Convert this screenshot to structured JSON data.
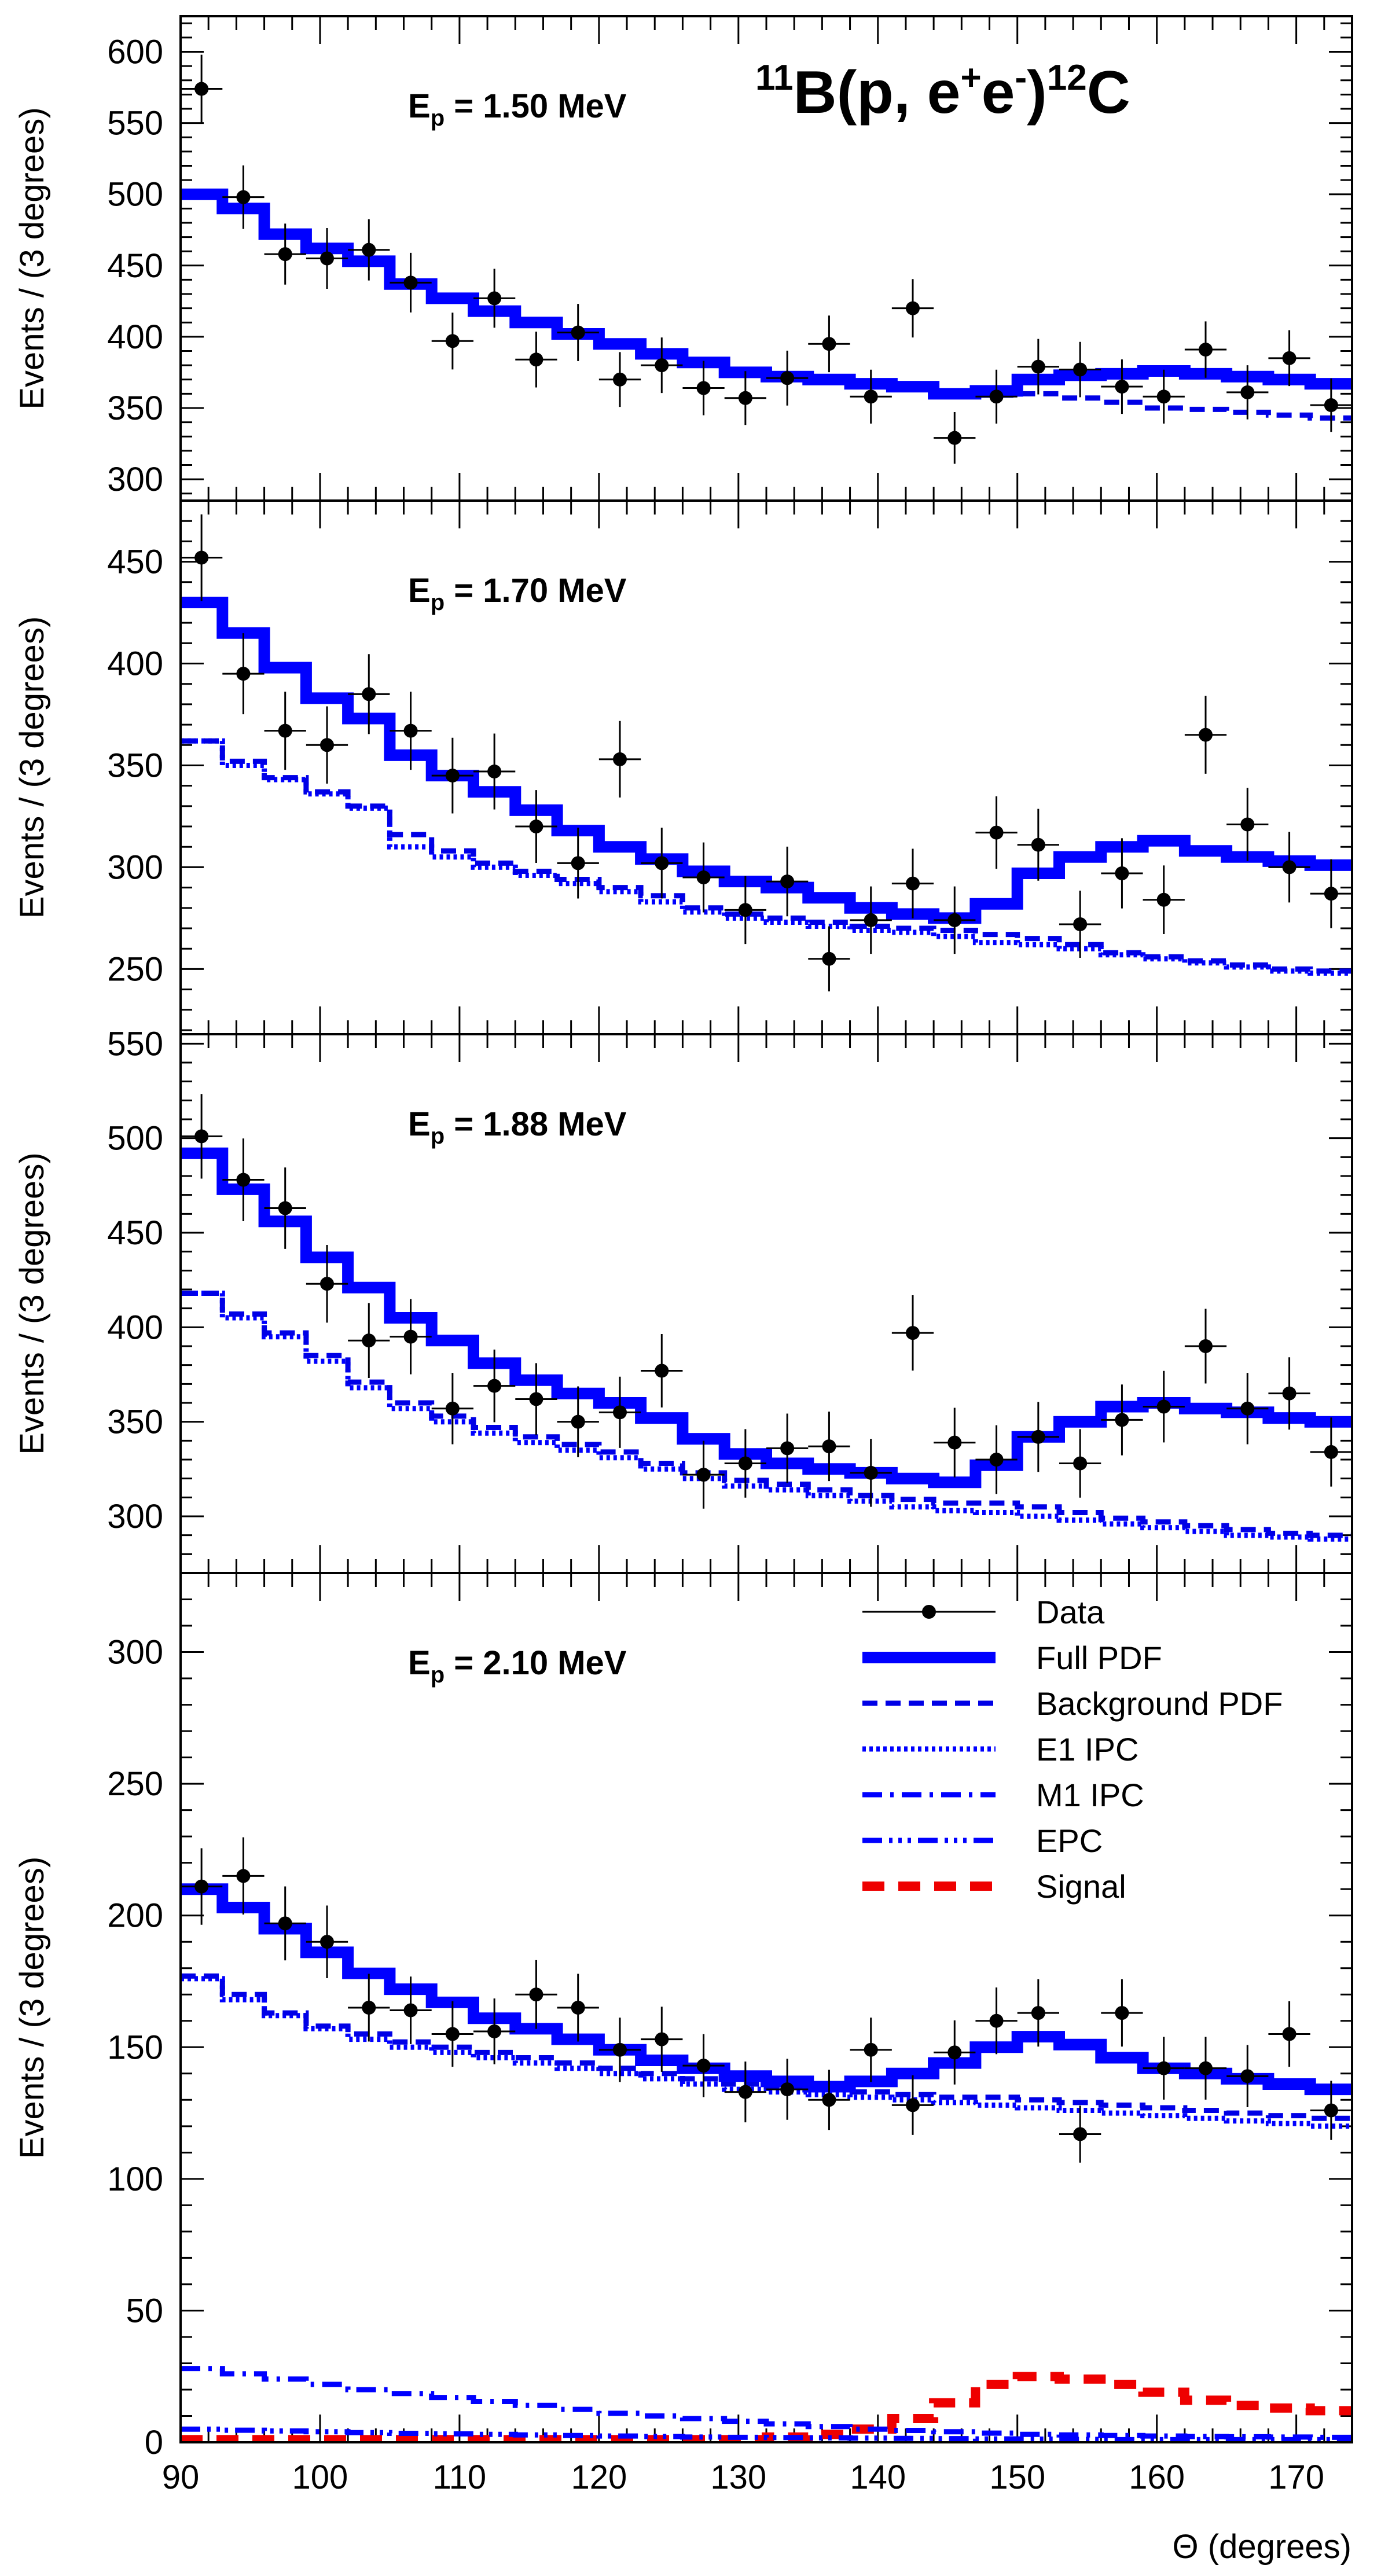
{
  "chart_data": {
    "type": "line",
    "reaction": {
      "sup_mass": "11",
      "body": "B(p, e",
      "sup_plus": "+",
      "mid": "e",
      "sup_minus": "-",
      "close": ")",
      "sup_mass2": "12",
      "tail": "C"
    },
    "xlabel": "Θ (degrees)",
    "xlim": [
      90,
      174
    ],
    "xticks": [
      90,
      100,
      110,
      120,
      130,
      140,
      150,
      160,
      170
    ],
    "xtick_labels": [
      "90",
      "100",
      "110",
      "120",
      "130",
      "140",
      "150",
      "160",
      "170"
    ],
    "ylabel": "Events / (3 degrees)",
    "colors": {
      "data": "#000000",
      "full": "#0000ff",
      "background": "#0000e6",
      "e1": "#0000ff",
      "m1": "#0000ff",
      "epc": "#0000ff",
      "signal": "#ee0000"
    },
    "legend": {
      "position": "top-right",
      "entries": [
        {
          "key": "data",
          "label": "Data"
        },
        {
          "key": "full",
          "label": "Full PDF"
        },
        {
          "key": "background",
          "label": "Background PDF"
        },
        {
          "key": "e1",
          "label": "E1 IPC"
        },
        {
          "key": "m1",
          "label": "M1 IPC"
        },
        {
          "key": "epc",
          "label": "EPC"
        },
        {
          "key": "signal",
          "label": "Signal"
        }
      ]
    },
    "bin_edges": [
      90,
      93,
      96,
      99,
      102,
      105,
      108,
      111,
      114,
      117,
      120,
      123,
      126,
      129,
      132,
      135,
      138,
      141,
      144,
      147,
      150,
      153,
      156,
      159,
      162,
      165,
      168,
      171,
      174
    ],
    "panels": [
      {
        "energy_label": {
          "sym": "E",
          "sub": "p",
          "text": " = 1.50 MeV"
        },
        "ylim": [
          285,
          625
        ],
        "yticks": [
          300,
          350,
          400,
          450,
          500,
          550,
          600
        ],
        "data": [
          574,
          498,
          458,
          455,
          461,
          438,
          397,
          427,
          384,
          403,
          370,
          380,
          364,
          357,
          371,
          395,
          358,
          420,
          329,
          358,
          379,
          377,
          365,
          358,
          391,
          361,
          385,
          352
        ],
        "full_pdf": [
          500,
          490,
          472,
          462,
          453,
          437,
          427,
          418,
          410,
          402,
          395,
          388,
          382,
          375,
          372,
          370,
          367,
          365,
          360,
          362,
          370,
          373,
          374,
          376,
          374,
          372,
          370,
          367
        ],
        "background_pdf": [
          500,
          490,
          472,
          462,
          453,
          437,
          427,
          418,
          410,
          402,
          395,
          388,
          382,
          375,
          372,
          370,
          367,
          365,
          360,
          359,
          360,
          357,
          354,
          350,
          349,
          347,
          345,
          343
        ]
      },
      {
        "energy_label": {
          "sym": "E",
          "sub": "p",
          "text": " = 1.70 MeV"
        },
        "ylim": [
          218,
          480
        ],
        "yticks": [
          250,
          300,
          350,
          400,
          450
        ],
        "data": [
          452,
          395,
          367,
          360,
          385,
          367,
          345,
          347,
          320,
          302,
          353,
          302,
          295,
          279,
          293,
          255,
          274,
          292,
          274,
          317,
          311,
          272,
          297,
          284,
          365,
          321,
          300,
          287
        ],
        "full_pdf": [
          430,
          415,
          398,
          383,
          373,
          355,
          345,
          337,
          328,
          318,
          310,
          304,
          298,
          293,
          290,
          285,
          280,
          277,
          275,
          282,
          297,
          305,
          310,
          313,
          308,
          305,
          303,
          301
        ],
        "background_pdf": [
          362,
          352,
          344,
          337,
          330,
          316,
          308,
          302,
          298,
          294,
          290,
          286,
          280,
          277,
          275,
          273,
          271,
          270,
          269,
          267,
          265,
          262,
          258,
          256,
          254,
          252,
          250,
          249
        ],
        "e1_ipc": [
          362,
          350,
          343,
          336,
          329,
          310,
          305,
          300,
          296,
          292,
          288,
          283,
          278,
          275,
          273,
          271,
          269,
          268,
          266,
          263,
          262,
          260,
          257,
          255,
          253,
          251,
          249,
          248
        ]
      },
      {
        "energy_label": {
          "sym": "E",
          "sub": "p",
          "text": " = 1.88 MeV"
        },
        "ylim": [
          270,
          555
        ],
        "yticks": [
          300,
          350,
          400,
          450,
          500,
          550
        ],
        "data": [
          501,
          478,
          463,
          423,
          393,
          395,
          357,
          369,
          362,
          350,
          355,
          377,
          322,
          328,
          336,
          337,
          323,
          397,
          339,
          330,
          342,
          328,
          351,
          358,
          390,
          357,
          365,
          334
        ],
        "full_pdf": [
          492,
          473,
          456,
          437,
          421,
          405,
          393,
          381,
          372,
          365,
          360,
          352,
          341,
          333,
          328,
          325,
          323,
          320,
          318,
          327,
          342,
          350,
          358,
          360,
          357,
          355,
          352,
          350
        ],
        "background_pdf": [
          418,
          407,
          397,
          385,
          371,
          360,
          353,
          347,
          342,
          338,
          334,
          328,
          323,
          319,
          317,
          314,
          311,
          309,
          307,
          307,
          305,
          302,
          299,
          297,
          295,
          293,
          291,
          290
        ],
        "e1_ipc": [
          418,
          405,
          395,
          382,
          368,
          357,
          350,
          344,
          339,
          335,
          331,
          325,
          320,
          316,
          314,
          311,
          308,
          305,
          303,
          302,
          300,
          298,
          296,
          294,
          292,
          290,
          289,
          288
        ]
      },
      {
        "energy_label": {
          "sym": "E",
          "sub": "p",
          "text": " = 2.10 MeV"
        },
        "ylim": [
          0,
          330
        ],
        "yticks": [
          0,
          50,
          100,
          150,
          200,
          250,
          300
        ],
        "data": [
          211,
          215,
          197,
          190,
          165,
          164,
          155,
          156,
          170,
          165,
          149,
          153,
          143,
          133,
          134,
          130,
          149,
          128,
          148,
          160,
          163,
          117,
          163,
          142,
          142,
          139,
          155,
          126
        ],
        "full_pdf": [
          210,
          203,
          195,
          186,
          178,
          172,
          167,
          161,
          157,
          153,
          149,
          145,
          142,
          139,
          137,
          135,
          137,
          140,
          144,
          150,
          154,
          151,
          146,
          142,
          140,
          138,
          136,
          134
        ],
        "background_pdf": [
          177,
          170,
          163,
          158,
          155,
          152,
          150,
          148,
          146,
          144,
          142,
          140,
          138,
          136,
          135,
          134,
          133,
          132,
          131,
          131,
          130,
          129,
          128,
          127,
          126,
          125,
          124,
          123
        ],
        "e1_ipc": [
          176,
          168,
          162,
          157,
          153,
          150,
          148,
          146,
          144,
          142,
          140,
          138,
          136,
          134,
          133,
          132,
          131,
          130,
          129,
          128,
          127,
          126,
          125,
          124,
          123,
          122,
          121,
          120
        ],
        "m1_ipc": [
          28,
          26,
          24,
          22,
          20,
          18.5,
          17,
          15.5,
          14,
          12.5,
          11,
          10,
          9,
          8,
          7,
          6,
          5,
          4.5,
          4,
          3.5,
          3,
          2.8,
          2.6,
          2.4,
          2.2,
          2.1,
          2,
          1.9
        ],
        "epc": [
          5,
          4.6,
          4.3,
          4,
          3.7,
          3.4,
          3.2,
          3,
          2.8,
          2.6,
          2.4,
          2.2,
          2,
          1.9,
          1.8,
          1.7,
          1.6,
          1.5,
          1.4,
          1.3,
          1.2,
          1.1,
          1,
          1,
          1,
          1,
          1,
          1
        ],
        "signal": [
          1,
          1,
          1,
          1,
          1,
          1,
          1,
          1,
          1,
          1,
          1,
          1,
          1,
          1,
          2,
          3,
          5,
          9,
          15,
          22,
          25,
          24,
          22,
          19,
          16,
          14,
          13,
          12
        ]
      }
    ]
  }
}
